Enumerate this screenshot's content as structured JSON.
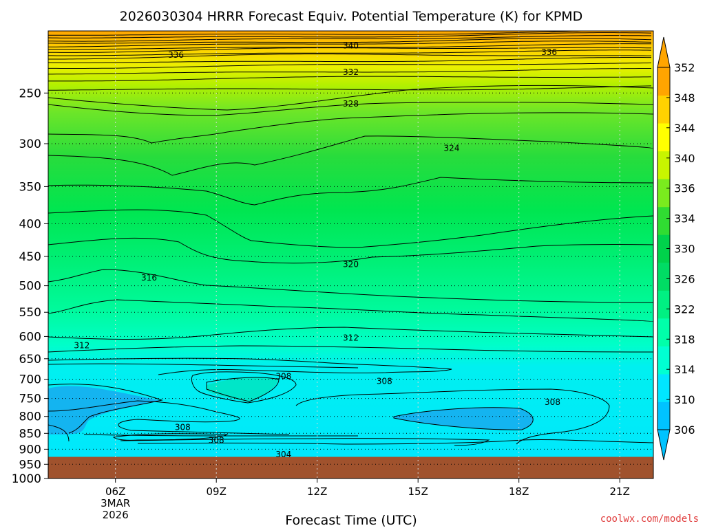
{
  "chart_data": {
    "type": "contour",
    "title": "2026030304 HRRR Forecast Equiv. Potential Temperature (K) for KPMD",
    "xlabel": "Forecast Time (UTC)",
    "ylabel": "",
    "credit": "coolwx.com/models",
    "x_ticks": [
      {
        "value": 6,
        "label": "06Z",
        "sub1": "3MAR",
        "sub2": "2026"
      },
      {
        "value": 9,
        "label": "09Z"
      },
      {
        "value": 12,
        "label": "12Z"
      },
      {
        "value": 15,
        "label": "15Z"
      },
      {
        "value": 18,
        "label": "18Z"
      },
      {
        "value": 21,
        "label": "21Z"
      }
    ],
    "xlim": [
      4,
      22
    ],
    "y_ticks": [
      250,
      300,
      350,
      400,
      450,
      500,
      550,
      600,
      650,
      700,
      750,
      800,
      850,
      900,
      950,
      1000
    ],
    "ylim": [
      200,
      1000
    ],
    "y_scale": "log",
    "ground_pressure": 925,
    "ground_color": "#a0522d",
    "colorbar": {
      "ticks": [
        306,
        310,
        314,
        318,
        322,
        326,
        330,
        334,
        336,
        340,
        344,
        348,
        352
      ],
      "min": 306,
      "max": 352,
      "colors": [
        "#00c3ff",
        "#00e6ff",
        "#00ffd2",
        "#00ffaa",
        "#00f082",
        "#00dc64",
        "#00d24b",
        "#30dc32",
        "#7aeb1e",
        "#c8f500",
        "#ffff00",
        "#ffd200",
        "#ffa500"
      ]
    },
    "contour_labels": [
      {
        "text": "340",
        "x": 13.0,
        "p": 211
      },
      {
        "text": "336",
        "x": 7.8,
        "p": 218
      },
      {
        "text": "336",
        "x": 18.9,
        "p": 216
      },
      {
        "text": "332",
        "x": 13.0,
        "p": 232
      },
      {
        "text": "328",
        "x": 13.0,
        "p": 260
      },
      {
        "text": "324",
        "x": 16.0,
        "p": 305
      },
      {
        "text": "320",
        "x": 13.0,
        "p": 463
      },
      {
        "text": "316",
        "x": 7.0,
        "p": 486
      },
      {
        "text": "312",
        "x": 13.0,
        "p": 603
      },
      {
        "text": "312",
        "x": 5.0,
        "p": 620
      },
      {
        "text": "308",
        "x": 11.0,
        "p": 693
      },
      {
        "text": "308",
        "x": 14.0,
        "p": 705
      },
      {
        "text": "308",
        "x": 19.0,
        "p": 760
      },
      {
        "text": "308",
        "x": 8.0,
        "p": 832
      },
      {
        "text": "308",
        "x": 9.0,
        "p": 872
      },
      {
        "text": "304",
        "x": 11.0,
        "p": 917
      }
    ]
  }
}
